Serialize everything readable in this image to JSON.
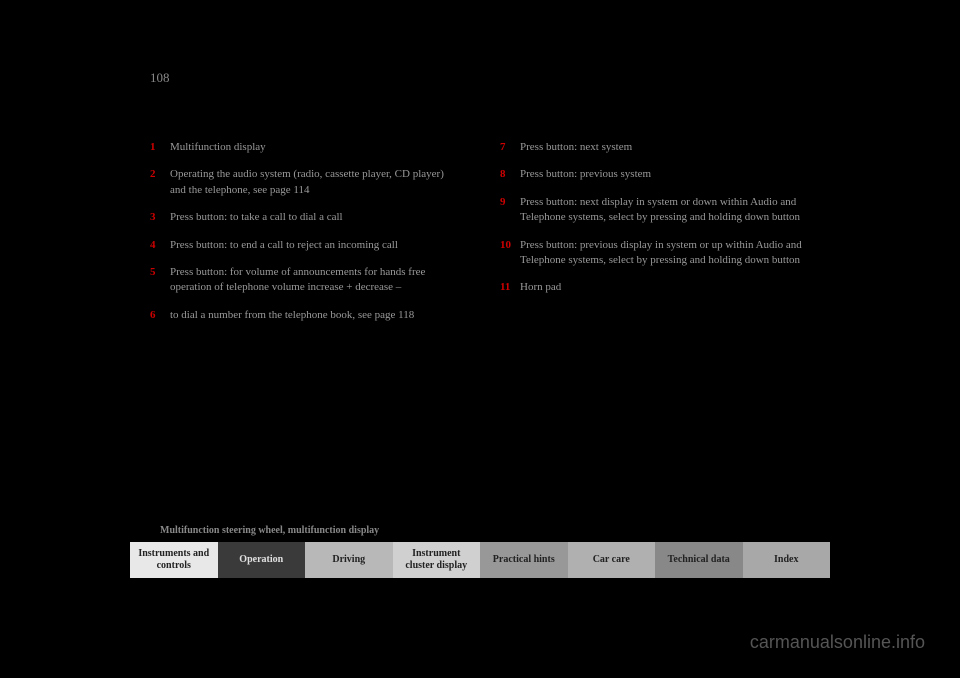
{
  "page_number": "108",
  "section_title": "Multifunction steering wheel, multifunction display",
  "left_column": [
    {
      "num": "1",
      "text": "Multifunction display"
    },
    {
      "num": "2",
      "text": "Operating the audio system (radio, cassette player, CD player) and the telephone, see page 114"
    },
    {
      "num": "3",
      "text": "Press button: to take a call to dial a call"
    },
    {
      "num": "4",
      "text": "Press button: to end a call to reject an incoming call"
    },
    {
      "num": "5",
      "text": "Press button: for volume of announcements for hands free operation of telephone volume increase + decrease –"
    },
    {
      "num": "6",
      "text": "to dial a number from the telephone book, see page 118"
    }
  ],
  "right_column": [
    {
      "num": "7",
      "text": "Press button: next system"
    },
    {
      "num": "8",
      "text": "Press button: previous system"
    },
    {
      "num": "9",
      "text": "Press button: next display in system or down within Audio and Telephone systems, select by pressing and holding down button"
    },
    {
      "num": "10",
      "text": "Press button: previous display in system or up within Audio and Telephone systems, select by pressing and holding down button"
    },
    {
      "num": "11",
      "text": "Horn pad"
    }
  ],
  "tabs": [
    {
      "label": "Instruments and controls",
      "class": "tab-1"
    },
    {
      "label": "Operation",
      "class": "tab-2"
    },
    {
      "label": "Driving",
      "class": "tab-3"
    },
    {
      "label": "Instrument cluster display",
      "class": "tab-4"
    },
    {
      "label": "Practical hints",
      "class": "tab-5"
    },
    {
      "label": "Car care",
      "class": "tab-6"
    },
    {
      "label": "Technical data",
      "class": "tab-7"
    },
    {
      "label": "Index",
      "class": "tab-8"
    }
  ],
  "watermark": "carmanualsonline.info"
}
